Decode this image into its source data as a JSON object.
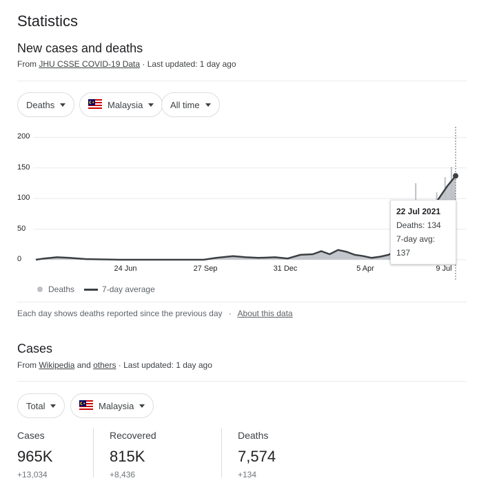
{
  "page_title": "Statistics",
  "deaths_section": {
    "title": "New cases and deaths",
    "source_prefix": "From",
    "source_link": "JHU CSSE COVID-19 Data",
    "last_updated": "· Last updated: 1 day ago",
    "filters": {
      "metric": "Deaths",
      "region": "Malaysia",
      "range": "All time"
    },
    "footnote": "Each day shows deaths reported since the previous day",
    "footnote_sep": "·",
    "about_link": "About this data"
  },
  "chart_data": {
    "type": "bar",
    "title": "",
    "xlabel": "",
    "ylabel": "",
    "ylim": [
      0,
      215
    ],
    "y_ticks": [
      "200",
      "150",
      "100",
      "50",
      "0"
    ],
    "x_ticks": [
      "24 Jun",
      "27 Sep",
      "31 Dec",
      "5 Apr",
      "9 Jul"
    ],
    "series": [
      {
        "name": "Deaths",
        "style": "bars",
        "color": "#bdc1c6"
      },
      {
        "name": "7-day average",
        "style": "line",
        "color": "#3c4043"
      }
    ],
    "avg_points": [
      [
        0,
        0
      ],
      [
        0.02,
        2
      ],
      [
        0.05,
        4
      ],
      [
        0.08,
        3
      ],
      [
        0.12,
        1
      ],
      [
        0.2,
        0
      ],
      [
        0.3,
        0
      ],
      [
        0.4,
        0
      ],
      [
        0.43,
        3
      ],
      [
        0.47,
        6
      ],
      [
        0.5,
        4
      ],
      [
        0.53,
        3
      ],
      [
        0.57,
        4
      ],
      [
        0.6,
        2
      ],
      [
        0.63,
        8
      ],
      [
        0.66,
        9
      ],
      [
        0.68,
        14
      ],
      [
        0.7,
        9
      ],
      [
        0.72,
        16
      ],
      [
        0.74,
        13
      ],
      [
        0.76,
        8
      ],
      [
        0.78,
        6
      ],
      [
        0.8,
        3
      ],
      [
        0.82,
        5
      ],
      [
        0.84,
        8
      ],
      [
        0.86,
        15
      ],
      [
        0.88,
        25
      ],
      [
        0.9,
        45
      ],
      [
        0.92,
        60
      ],
      [
        0.94,
        80
      ],
      [
        0.96,
        100
      ],
      [
        0.98,
        120
      ],
      [
        1.0,
        137
      ]
    ],
    "highlighted": {
      "date": "22 Jul 2021",
      "deaths": "Deaths: 134",
      "avg": "7-day avg: 137",
      "deaths_value": 134,
      "avg_value": 137
    },
    "grid": true,
    "legend_position": "bottom-left"
  },
  "legend": {
    "deaths": "Deaths",
    "avg": "7-day average"
  },
  "cases_section": {
    "title": "Cases",
    "source_prefix": "From",
    "link1": "Wikipedia",
    "and": "and",
    "link2": "others",
    "last_updated": "· Last updated: 1 day ago",
    "filters": {
      "metric": "Total",
      "region": "Malaysia"
    },
    "stats": [
      {
        "label": "Cases",
        "value": "965K",
        "delta": "+13,034"
      },
      {
        "label": "Recovered",
        "value": "815K",
        "delta": "+8,436"
      },
      {
        "label": "Deaths",
        "value": "7,574",
        "delta": "+134"
      }
    ]
  },
  "colors": {
    "line": "#3c4043",
    "bar": "#bdc1c6",
    "grid": "#e8eaed",
    "flag_red": "#cc0000",
    "flag_blue": "#010066",
    "flag_yellow": "#ffcc00"
  }
}
